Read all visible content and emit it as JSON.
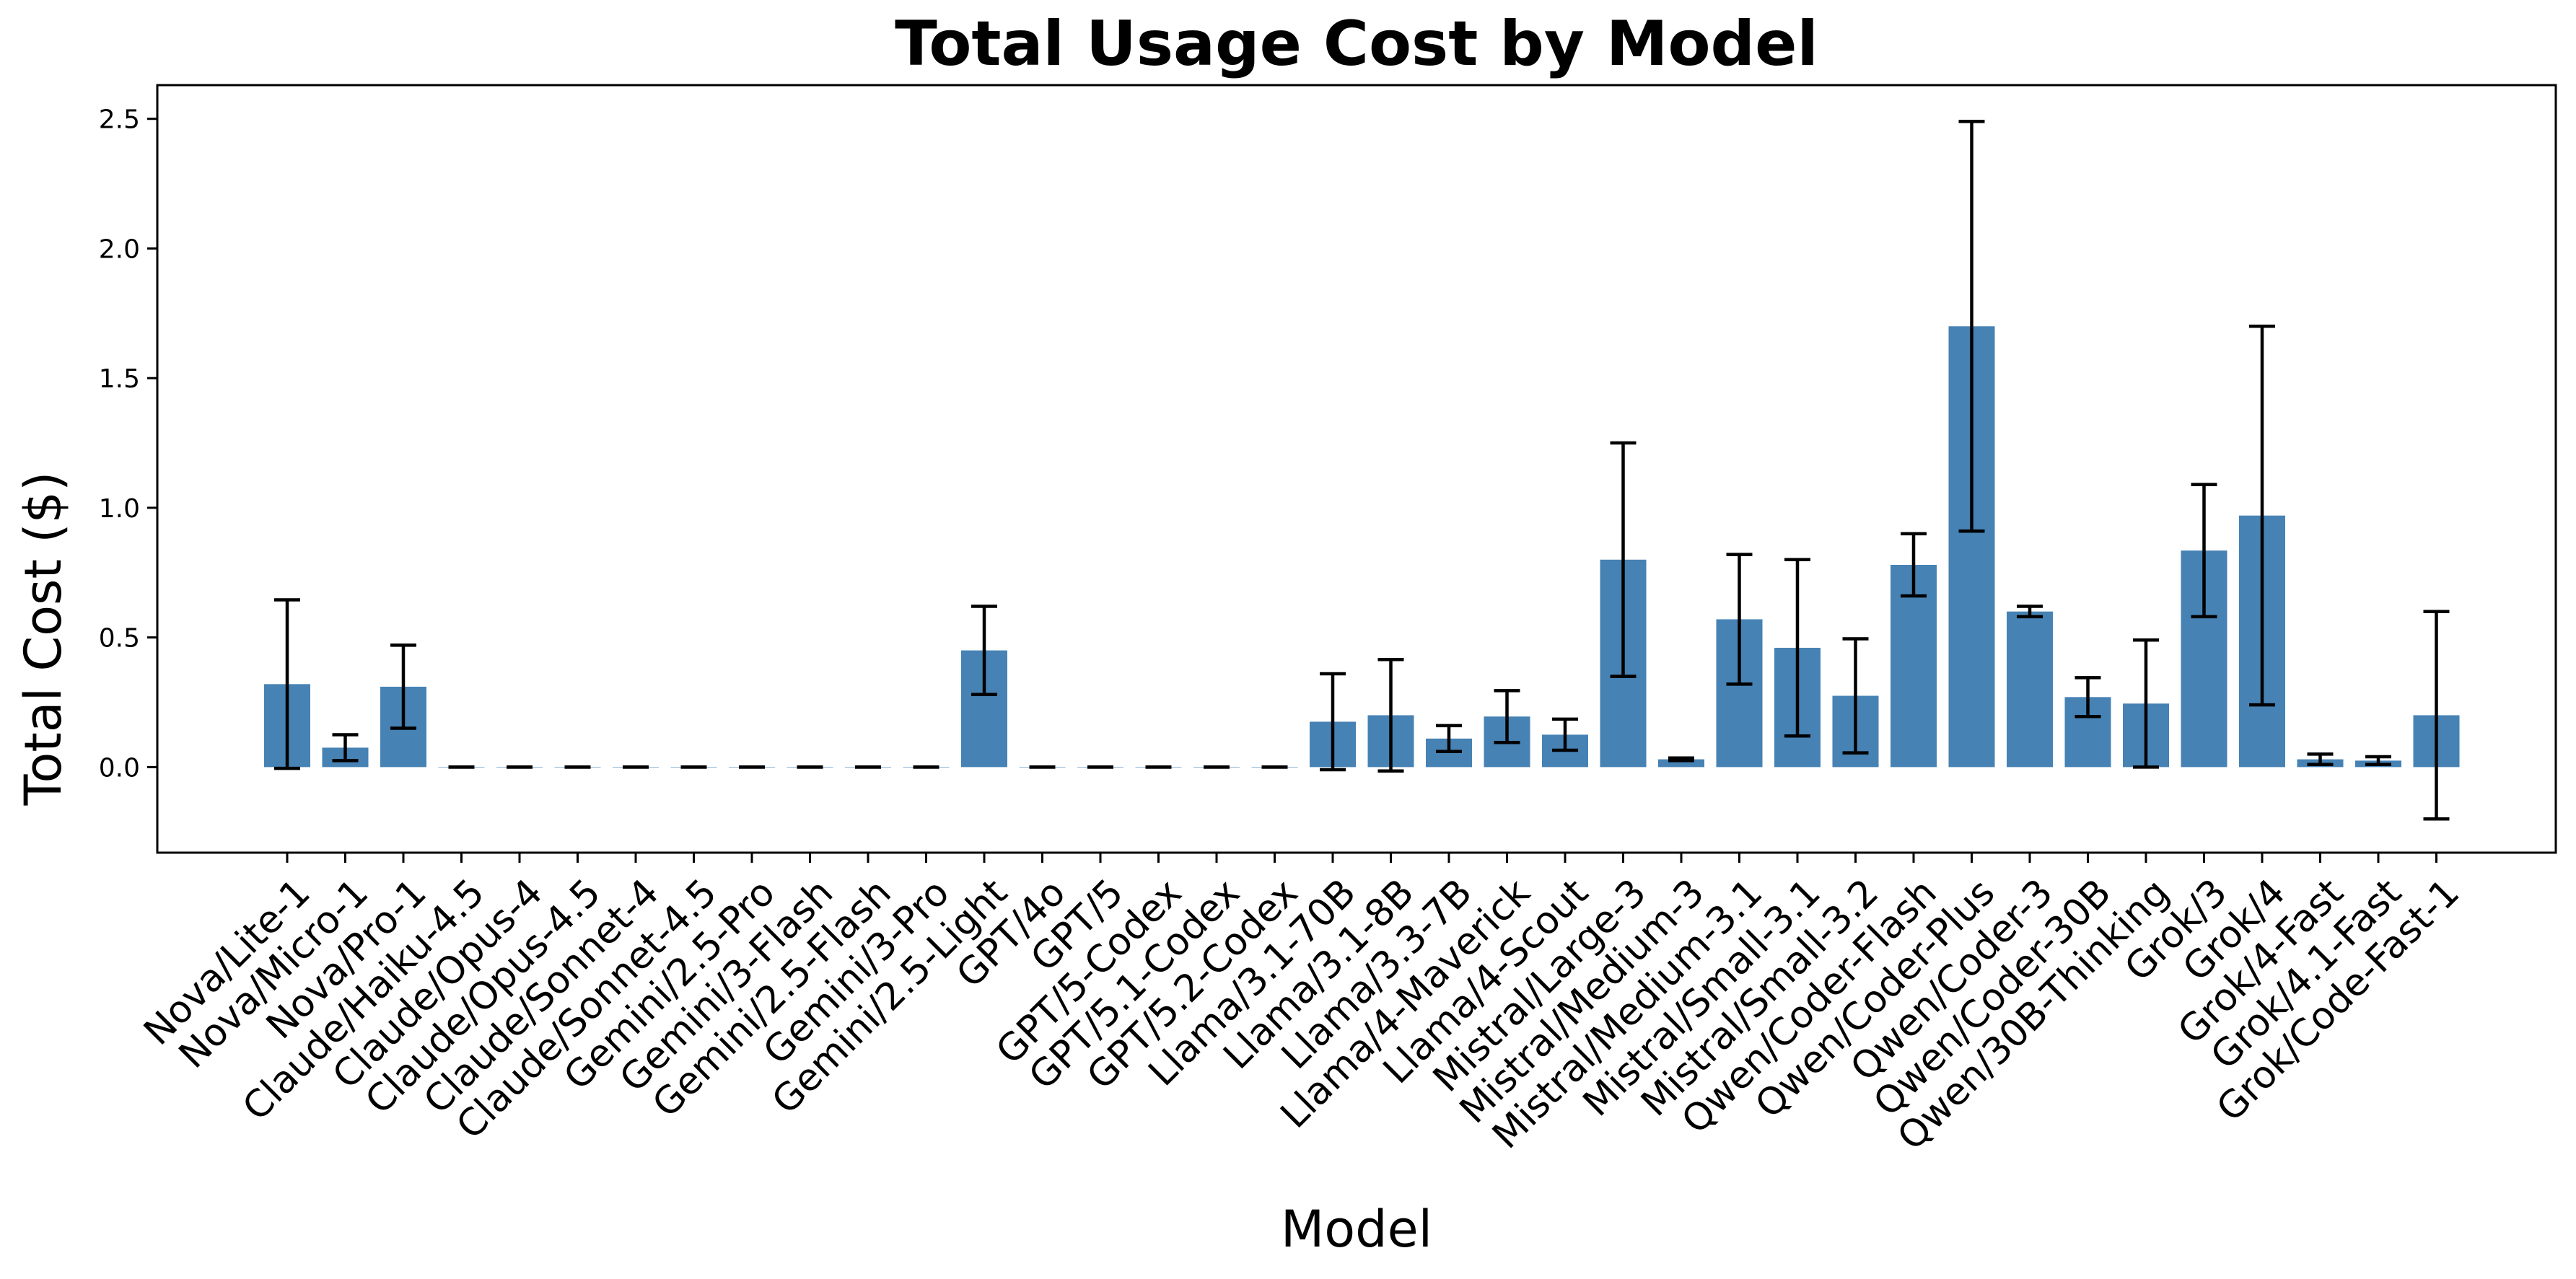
{
  "chart_data": {
    "type": "bar",
    "title": "Total Usage Cost by Model",
    "xlabel": "Model",
    "ylabel": "Total Cost ($)",
    "ylim": [
      -0.33,
      2.63
    ],
    "yticks": [
      0.0,
      0.5,
      1.0,
      1.5,
      2.0,
      2.5
    ],
    "ytick_labels": [
      "0.0",
      "0.5",
      "1.0",
      "1.5",
      "2.0",
      "2.5"
    ],
    "grid": false,
    "bar_color": "#4682b4",
    "errorbar_color": "#000000",
    "categories": [
      "Nova/Lite-1",
      "Nova/Micro-1",
      "Nova/Pro-1",
      "Claude/Haiku-4.5",
      "Claude/Opus-4",
      "Claude/Opus-4.5",
      "Claude/Sonnet-4",
      "Claude/Sonnet-4.5",
      "Gemini/2.5-Pro",
      "Gemini/3-Flash",
      "Gemini/2.5-Flash",
      "Gemini/3-Pro",
      "Gemini/2.5-Light",
      "GPT/4o",
      "GPT/5",
      "GPT/5-Codex",
      "GPT/5.1-Codex",
      "GPT/5.2-Codex",
      "Llama/3.1-70B",
      "Llama/3.1-8B",
      "Llama/3.3-7B",
      "Llama/4-Maverick",
      "Llama/4-Scout",
      "Mistral/Large-3",
      "Mistral/Medium-3",
      "Mistral/Medium-3.1",
      "Mistral/Small-3.1",
      "Mistral/Small-3.2",
      "Qwen/Coder-Flash",
      "Qwen/Coder-Plus",
      "Qwen/Coder-3",
      "Qwen/Coder-30B",
      "Qwen/30B-Thinking",
      "Grok/3",
      "Grok/4",
      "Grok/4-Fast",
      "Grok/4.1-Fast",
      "Grok/Code-Fast-1"
    ],
    "values": [
      0.32,
      0.075,
      0.31,
      0,
      0,
      0,
      0,
      0,
      0,
      0,
      0,
      0,
      0.45,
      0,
      0,
      0,
      0,
      0,
      0.175,
      0.2,
      0.11,
      0.195,
      0.125,
      0.8,
      0.03,
      0.57,
      0.46,
      0.275,
      0.78,
      1.7,
      0.6,
      0.27,
      0.245,
      0.835,
      0.97,
      0.03,
      0.025,
      0.2
    ],
    "errors": [
      0.325,
      0.05,
      0.16,
      0,
      0,
      0,
      0,
      0,
      0,
      0,
      0,
      0,
      0.17,
      0,
      0,
      0,
      0,
      0,
      0.185,
      0.215,
      0.05,
      0.1,
      0.06,
      0.45,
      0.005,
      0.25,
      0.34,
      0.22,
      0.12,
      0.79,
      0.02,
      0.075,
      0.245,
      0.255,
      0.73,
      0.02,
      0.015,
      0.4
    ]
  }
}
